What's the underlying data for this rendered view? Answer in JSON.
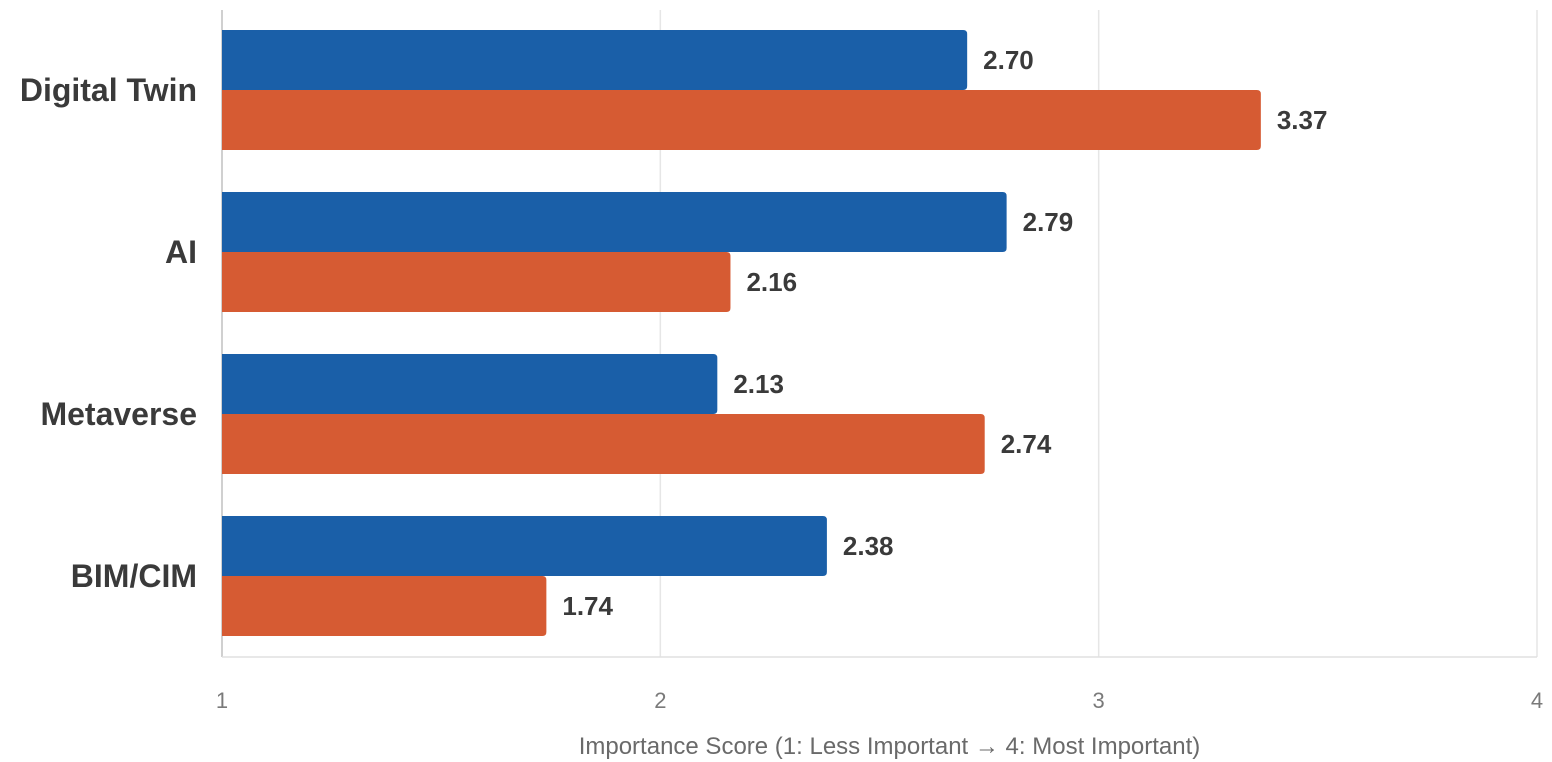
{
  "chart_data": {
    "type": "bar",
    "orientation": "horizontal",
    "categories": [
      "Digital Twin",
      "AI",
      "Metaverse",
      "BIM/CIM"
    ],
    "series": [
      {
        "values": [
          2.7,
          2.79,
          2.13,
          2.38
        ],
        "color": "#1a5fa8"
      },
      {
        "values": [
          3.37,
          2.16,
          2.74,
          1.74
        ],
        "color": "#d65b33"
      }
    ],
    "value_labels": [
      [
        "2.70",
        "2.79",
        "2.13",
        "2.38"
      ],
      [
        "3.37",
        "2.16",
        "2.74",
        "1.74"
      ]
    ],
    "x_ticks": [
      "1",
      "2",
      "3",
      "4"
    ],
    "xlim": [
      1,
      4
    ],
    "xlabel": "Importance Score (1: Less Important → 4: Most Important)",
    "ylabel": "",
    "title": "",
    "grid": true,
    "legend": "none"
  }
}
